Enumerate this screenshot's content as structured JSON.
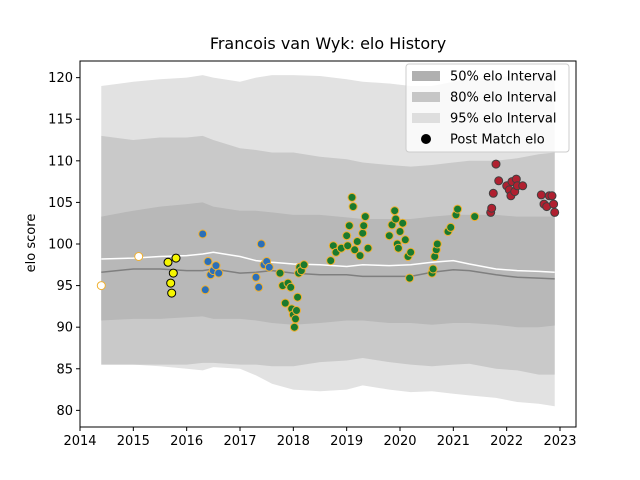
{
  "chart_data": {
    "type": "scatter",
    "title": "Francois van Wyk: elo History",
    "xlabel": "",
    "ylabel": "elo score",
    "xlim": [
      2014.0,
      2023.3
    ],
    "ylim": [
      78,
      122
    ],
    "xticks": [
      2014,
      2015,
      2016,
      2017,
      2018,
      2019,
      2020,
      2021,
      2022,
      2023
    ],
    "yticks": [
      80,
      85,
      90,
      95,
      100,
      105,
      110,
      115,
      120
    ],
    "grid": false,
    "legend_position": "top-right",
    "legend": [
      {
        "label": "50% elo Interval",
        "kind": "patch",
        "color": "#b0b0b0"
      },
      {
        "label": "80% elo Interval",
        "kind": "patch",
        "color": "#c6c6c6"
      },
      {
        "label": "95% elo Interval",
        "kind": "patch",
        "color": "#dedede"
      },
      {
        "label": "Post Match elo",
        "kind": "marker",
        "color": "#000000"
      }
    ],
    "colors": {
      "band95": "#e2e2e2",
      "band80": "#c9c9c9",
      "band50": "#b8b8b8",
      "median_line": "#7f7f7f",
      "mean_line": "#ffffff"
    },
    "bands": {
      "x": [
        2014.4,
        2015.0,
        2015.5,
        2016.0,
        2016.3,
        2016.5,
        2017.0,
        2017.3,
        2017.6,
        2018.0,
        2018.5,
        2019.0,
        2019.3,
        2019.8,
        2020.2,
        2020.6,
        2021.0,
        2021.3,
        2021.8,
        2022.2,
        2022.6,
        2022.9
      ],
      "p95_lo": [
        85.5,
        85.5,
        85.3,
        85.0,
        84.8,
        85.2,
        85.0,
        84.2,
        83.2,
        82.5,
        82.3,
        82.5,
        83.0,
        82.5,
        82.2,
        82.3,
        82.0,
        81.8,
        81.5,
        81.0,
        80.8,
        80.5
      ],
      "p95_hi": [
        119.0,
        119.5,
        119.8,
        120.0,
        120.3,
        120.0,
        119.5,
        120.0,
        120.3,
        120.3,
        120.2,
        119.8,
        119.5,
        119.3,
        119.0,
        119.0,
        119.5,
        120.0,
        120.0,
        120.3,
        120.5,
        121.0
      ],
      "p80_lo": [
        85.5,
        85.5,
        85.5,
        85.5,
        85.7,
        85.7,
        85.5,
        85.5,
        85.3,
        85.3,
        85.8,
        86.0,
        86.3,
        85.8,
        85.5,
        85.3,
        85.5,
        85.6,
        85.0,
        84.8,
        84.3,
        84.3
      ],
      "p80_hi": [
        113.0,
        112.5,
        112.8,
        112.8,
        113.0,
        112.5,
        111.5,
        111.3,
        111.0,
        111.0,
        110.5,
        110.2,
        109.8,
        109.5,
        109.3,
        109.5,
        109.8,
        110.0,
        110.0,
        110.3,
        110.8,
        111.0
      ],
      "p50_lo": [
        90.8,
        91.0,
        91.0,
        91.2,
        91.3,
        91.0,
        91.0,
        90.8,
        90.5,
        90.3,
        90.5,
        90.8,
        90.8,
        90.5,
        90.5,
        90.3,
        90.5,
        90.5,
        90.3,
        90.0,
        90.0,
        90.2
      ],
      "p50_hi": [
        103.3,
        104.0,
        104.5,
        104.8,
        105.0,
        104.5,
        104.0,
        104.0,
        103.8,
        103.5,
        103.5,
        103.2,
        103.0,
        103.0,
        103.0,
        103.3,
        103.5,
        103.5,
        103.5,
        103.3,
        103.3,
        103.3
      ]
    },
    "median_line": {
      "x": [
        2014.4,
        2015.0,
        2015.5,
        2016.0,
        2016.3,
        2016.5,
        2017.0,
        2017.3,
        2017.6,
        2018.0,
        2018.5,
        2019.0,
        2019.3,
        2019.8,
        2020.2,
        2020.6,
        2021.0,
        2021.3,
        2021.8,
        2022.2,
        2022.6,
        2022.9
      ],
      "y": [
        96.6,
        97.0,
        97.0,
        96.8,
        96.8,
        97.0,
        96.5,
        96.6,
        96.8,
        96.5,
        96.3,
        96.3,
        96.1,
        96.1,
        96.1,
        96.6,
        96.9,
        96.8,
        96.3,
        96.0,
        95.9,
        95.8
      ]
    },
    "mean_line": {
      "x": [
        2014.4,
        2015.0,
        2015.5,
        2016.0,
        2016.3,
        2016.5,
        2017.0,
        2017.3,
        2017.6,
        2018.0,
        2018.5,
        2019.0,
        2019.3,
        2019.8,
        2020.2,
        2020.6,
        2021.0,
        2021.3,
        2021.8,
        2022.2,
        2022.6,
        2022.9
      ],
      "y": [
        98.2,
        98.3,
        98.5,
        98.6,
        98.8,
        99.0,
        98.5,
        98.0,
        97.8,
        97.6,
        97.5,
        97.3,
        97.5,
        97.4,
        97.5,
        97.8,
        98.0,
        97.6,
        97.0,
        96.8,
        96.7,
        96.6
      ]
    },
    "series": [
      {
        "fill": "#ffffff",
        "edge": "#f0b030",
        "points": [
          [
            2014.4,
            95.0
          ],
          [
            2015.1,
            98.5
          ]
        ]
      },
      {
        "fill": "#f5f500",
        "edge": "#000000",
        "points": [
          [
            2015.65,
            97.8
          ],
          [
            2015.7,
            95.3
          ],
          [
            2015.72,
            94.1
          ],
          [
            2015.75,
            96.5
          ],
          [
            2015.8,
            98.3
          ]
        ]
      },
      {
        "fill": "#2b6fb8",
        "edge": "#f0b030",
        "points": [
          [
            2016.3,
            101.2
          ],
          [
            2016.35,
            94.5
          ],
          [
            2016.4,
            97.9
          ],
          [
            2016.45,
            96.3
          ],
          [
            2016.5,
            96.8
          ],
          [
            2016.55,
            97.4
          ],
          [
            2016.6,
            96.5
          ],
          [
            2017.3,
            96.0
          ],
          [
            2017.35,
            94.8
          ],
          [
            2017.4,
            100.0
          ],
          [
            2017.45,
            97.5
          ],
          [
            2017.5,
            97.9
          ],
          [
            2017.55,
            97.2
          ]
        ]
      },
      {
        "fill": "#1a7a2e",
        "edge": "#f0b030",
        "points": [
          [
            2017.75,
            96.5
          ],
          [
            2017.8,
            95.0
          ],
          [
            2017.85,
            92.9
          ],
          [
            2017.9,
            95.3
          ],
          [
            2017.95,
            94.8
          ],
          [
            2017.97,
            92.2
          ],
          [
            2018.0,
            91.5
          ],
          [
            2018.02,
            90.0
          ],
          [
            2018.04,
            91.0
          ],
          [
            2018.06,
            92.0
          ],
          [
            2018.08,
            93.6
          ],
          [
            2018.1,
            96.5
          ],
          [
            2018.12,
            97.2
          ],
          [
            2018.15,
            96.8
          ],
          [
            2018.2,
            97.5
          ],
          [
            2018.7,
            98.0
          ],
          [
            2018.75,
            99.8
          ],
          [
            2018.8,
            99.0
          ],
          [
            2018.9,
            99.5
          ],
          [
            2019.0,
            101.0
          ],
          [
            2019.02,
            99.8
          ],
          [
            2019.05,
            102.2
          ],
          [
            2019.1,
            105.6
          ],
          [
            2019.12,
            104.5
          ],
          [
            2019.15,
            99.3
          ],
          [
            2019.2,
            100.3
          ],
          [
            2019.25,
            98.6
          ],
          [
            2019.3,
            101.3
          ],
          [
            2019.32,
            102.2
          ],
          [
            2019.35,
            103.3
          ],
          [
            2019.4,
            99.5
          ],
          [
            2019.8,
            101.0
          ],
          [
            2019.85,
            102.3
          ],
          [
            2019.9,
            104.0
          ],
          [
            2019.92,
            103.0
          ],
          [
            2019.95,
            100.0
          ],
          [
            2019.97,
            99.5
          ],
          [
            2020.0,
            101.5
          ],
          [
            2020.05,
            102.5
          ],
          [
            2020.1,
            100.5
          ],
          [
            2020.15,
            98.5
          ],
          [
            2020.18,
            95.9
          ],
          [
            2020.2,
            99.0
          ],
          [
            2020.6,
            96.5
          ],
          [
            2020.62,
            97.0
          ],
          [
            2020.65,
            98.5
          ],
          [
            2020.68,
            99.3
          ],
          [
            2020.7,
            100.0
          ],
          [
            2020.9,
            101.5
          ],
          [
            2020.95,
            102.0
          ],
          [
            2021.05,
            103.5
          ],
          [
            2021.08,
            104.2
          ],
          [
            2021.4,
            103.3
          ]
        ]
      },
      {
        "fill": "#b02030",
        "edge": "#404040",
        "points": [
          [
            2021.7,
            103.8
          ],
          [
            2021.72,
            104.3
          ],
          [
            2021.75,
            106.1
          ],
          [
            2021.8,
            109.6
          ],
          [
            2021.85,
            107.6
          ],
          [
            2022.0,
            107.0
          ],
          [
            2022.05,
            106.5
          ],
          [
            2022.08,
            105.8
          ],
          [
            2022.1,
            107.5
          ],
          [
            2022.15,
            106.3
          ],
          [
            2022.18,
            107.8
          ],
          [
            2022.2,
            107.0
          ],
          [
            2022.3,
            107.0
          ],
          [
            2022.65,
            105.9
          ],
          [
            2022.7,
            104.8
          ],
          [
            2022.75,
            104.5
          ],
          [
            2022.8,
            105.8
          ],
          [
            2022.85,
            105.8
          ],
          [
            2022.88,
            104.8
          ],
          [
            2022.9,
            103.8
          ]
        ]
      }
    ]
  }
}
